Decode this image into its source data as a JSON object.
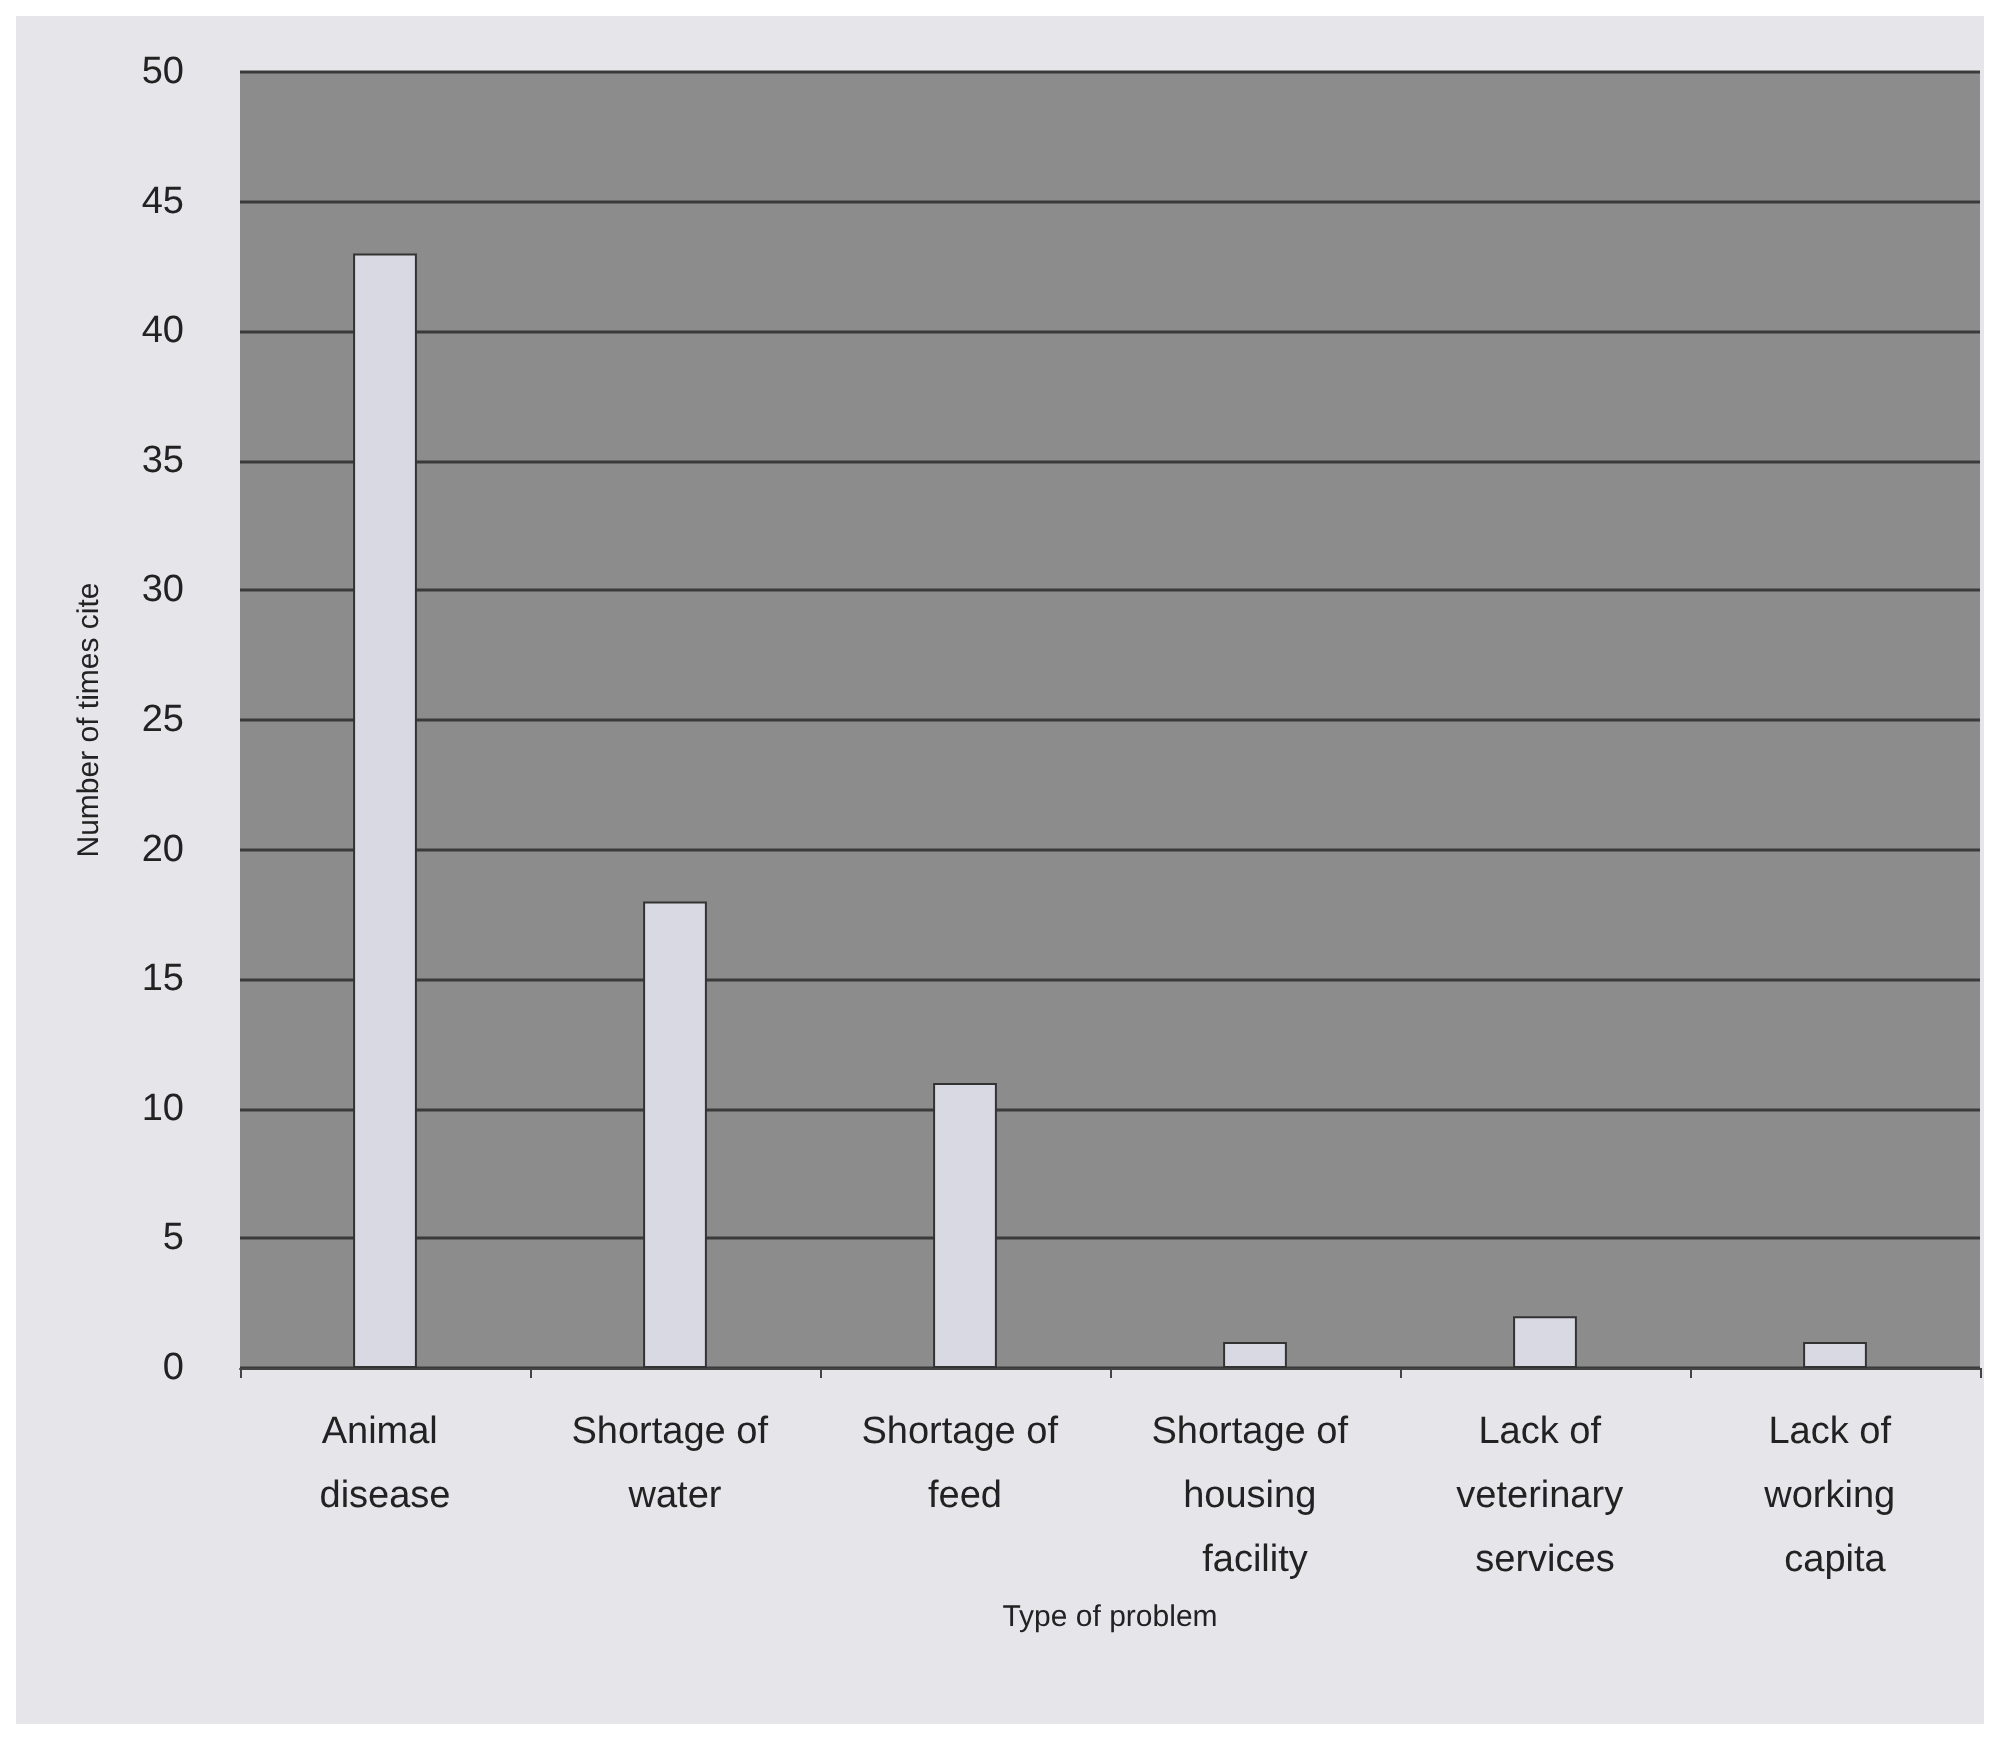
{
  "chart_data": {
    "type": "bar",
    "xlabel": "Type of problem",
    "ylabel": "Number of times cite",
    "categories": [
      "Animal disease",
      "Shortage of water",
      "Shortage of feed",
      "Shortage of housing facility",
      "Lack of veterinary services",
      "Lack of working capita"
    ],
    "values": [
      43,
      18,
      11,
      1,
      2,
      1
    ],
    "color": "#d9d9e3",
    "ylim": [
      0,
      50
    ],
    "yticks": [
      0,
      5,
      10,
      15,
      20,
      25,
      30,
      35,
      40,
      45,
      50
    ],
    "grid": "y"
  }
}
